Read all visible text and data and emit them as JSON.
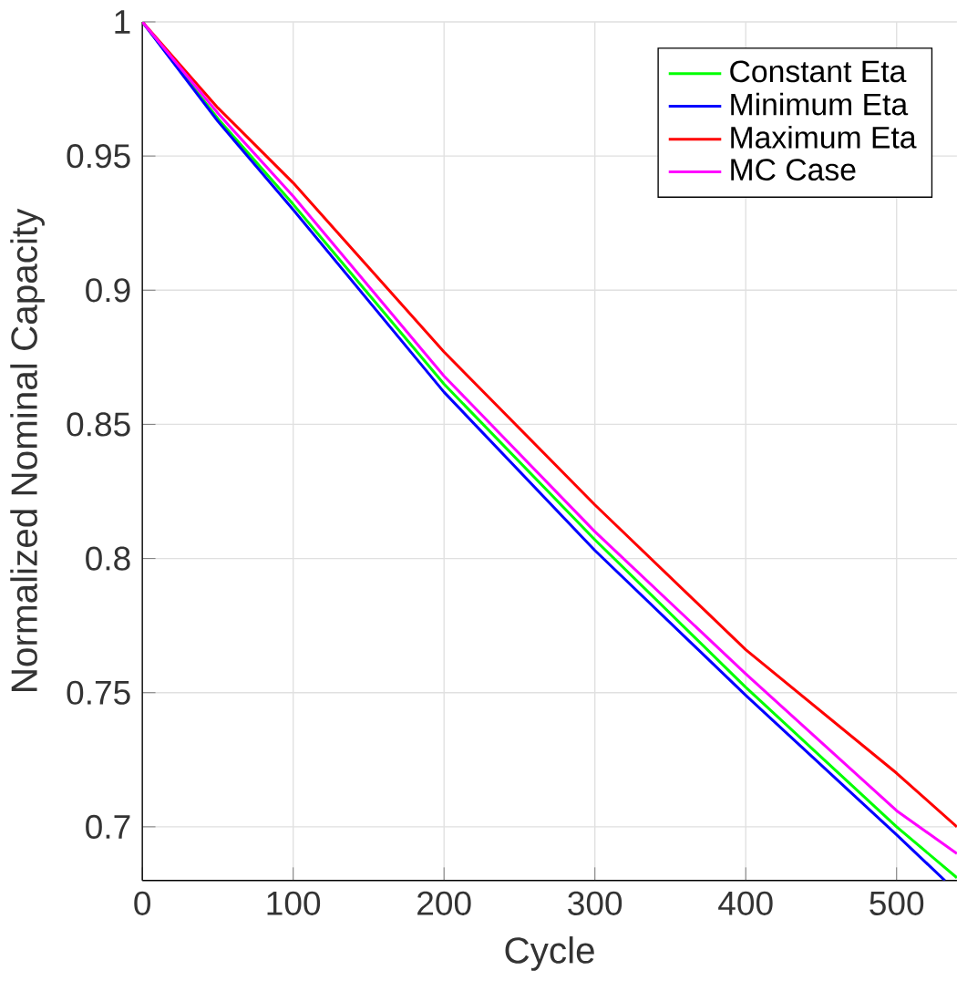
{
  "chart_data": {
    "type": "line",
    "xlabel": "Cycle",
    "ylabel": "Normalized Nominal Capacity",
    "xlim": [
      0,
      540
    ],
    "ylim": [
      0.68,
      1
    ],
    "xticks": [
      0,
      100,
      200,
      300,
      400,
      500
    ],
    "yticks": [
      0.7,
      0.75,
      0.8,
      0.85,
      0.9,
      0.95,
      1
    ],
    "grid": true,
    "legend": "top right",
    "line_style": "solid",
    "marker": "none",
    "series": [
      {
        "name": "Constant Eta",
        "color": "#00ff00",
        "x": [
          0,
          50,
          100,
          200,
          300,
          400,
          500,
          540
        ],
        "values": [
          1,
          0.964,
          0.932,
          0.865,
          0.807,
          0.752,
          0.7,
          0.681
        ]
      },
      {
        "name": "Minimum Eta",
        "color": "#0000ff",
        "x": [
          0,
          50,
          100,
          200,
          300,
          400,
          500,
          532
        ],
        "values": [
          1,
          0.963,
          0.93,
          0.862,
          0.803,
          0.749,
          0.697,
          0.68
        ]
      },
      {
        "name": "Maximum Eta",
        "color": "#ff0000",
        "x": [
          0,
          50,
          100,
          200,
          300,
          400,
          500,
          540
        ],
        "values": [
          1,
          0.968,
          0.94,
          0.877,
          0.82,
          0.766,
          0.72,
          0.7
        ]
      },
      {
        "name": "MC Case",
        "color": "#ff00ff",
        "x": [
          0,
          50,
          100,
          200,
          300,
          400,
          500,
          540
        ],
        "values": [
          1,
          0.966,
          0.935,
          0.868,
          0.81,
          0.757,
          0.706,
          0.69
        ]
      }
    ]
  }
}
